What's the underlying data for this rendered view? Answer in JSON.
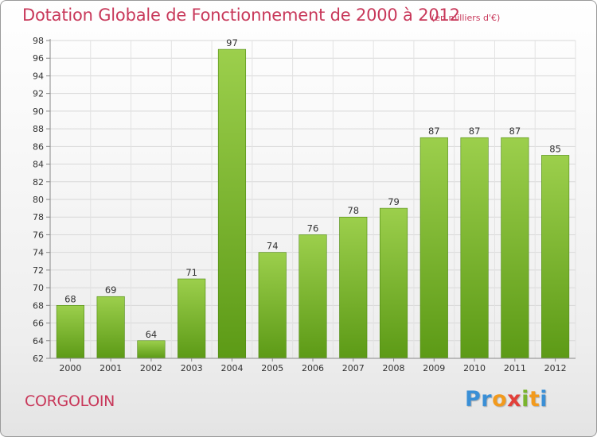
{
  "header": {
    "title": "Dotation Globale de Fonctionnement de 2000 à 2012",
    "subtitle": "(en milliers d'€)"
  },
  "commune": "CORGOLOIN",
  "logo": {
    "text": "Proxiti"
  },
  "colors": {
    "bar_top": "#9ccf4c",
    "bar_bottom": "#5c9a16",
    "title": "#c8385a"
  },
  "chart_data": {
    "type": "bar",
    "title": "Dotation Globale de Fonctionnement de 2000 à 2012",
    "subtitle": "(en milliers d'€)",
    "categories": [
      "2000",
      "2001",
      "2002",
      "2003",
      "2004",
      "2005",
      "2006",
      "2007",
      "2008",
      "2009",
      "2010",
      "2011",
      "2012"
    ],
    "values": [
      68,
      69,
      64,
      71,
      97,
      74,
      76,
      78,
      79,
      87,
      87,
      87,
      85
    ],
    "ylim": [
      62,
      98
    ],
    "yticks": [
      62,
      64,
      66,
      68,
      70,
      72,
      74,
      76,
      78,
      80,
      82,
      84,
      86,
      88,
      90,
      92,
      94,
      96,
      98
    ],
    "grid": true,
    "legend": "none"
  }
}
